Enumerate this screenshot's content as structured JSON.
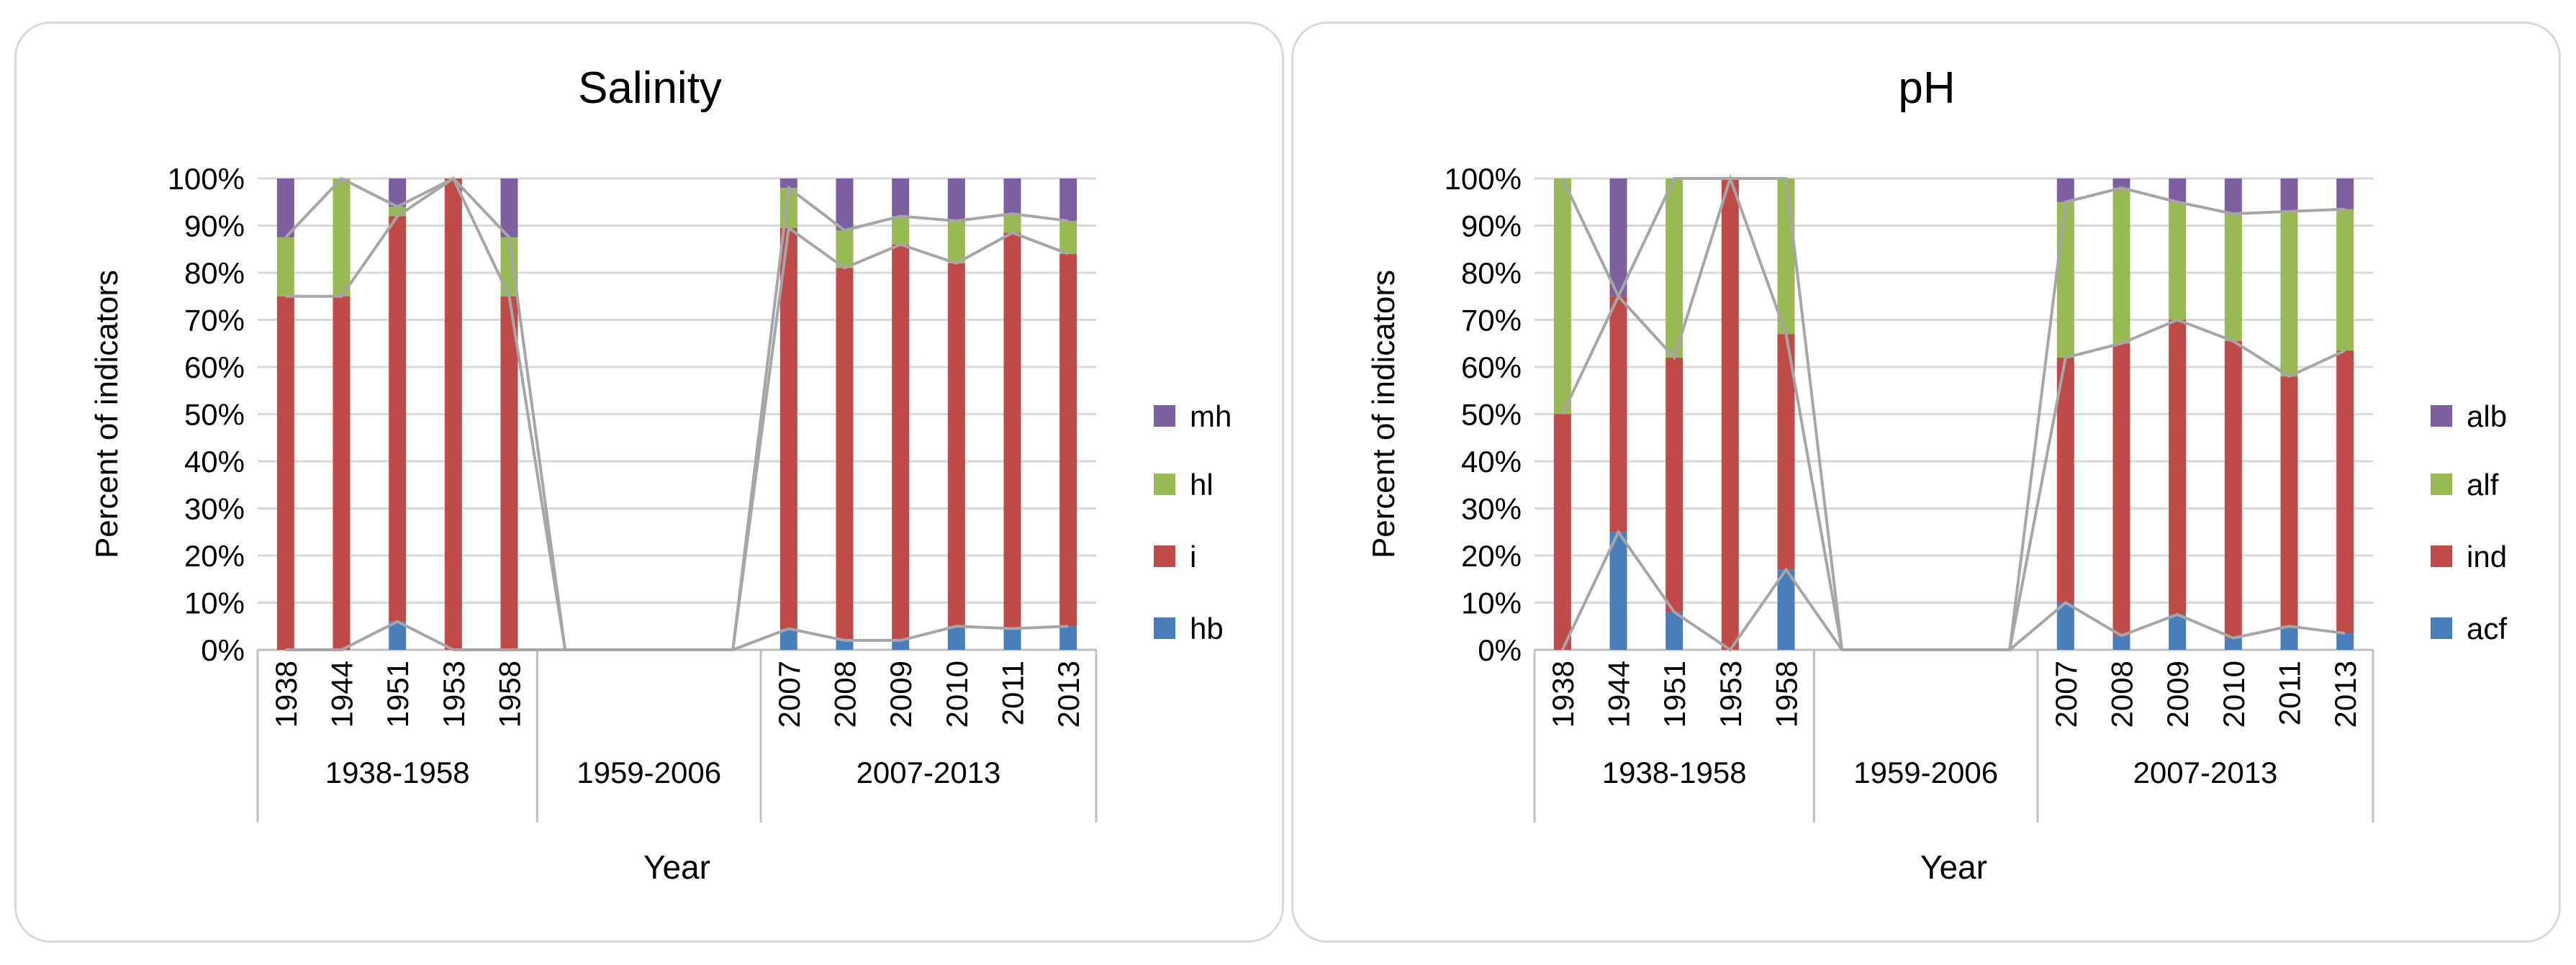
{
  "chart_data": [
    {
      "type": "bar",
      "stacked": true,
      "percent_stacked": true,
      "title": "Salinity",
      "xlabel": "Year",
      "ylabel": "Percent of indicators",
      "ylim": [
        0,
        100
      ],
      "ytick_labels": [
        "0%",
        "10%",
        "20%",
        "30%",
        "40%",
        "50%",
        "60%",
        "70%",
        "80%",
        "90%",
        "100%"
      ],
      "groups": [
        "1938-1958",
        "1959-2006",
        "2007-2013"
      ],
      "categories": [
        "1938",
        "1944",
        "1951",
        "1953",
        "1958",
        "",
        "",
        "",
        "",
        "2007",
        "2008",
        "2009",
        "2010",
        "2011",
        "2013"
      ],
      "category_group": [
        0,
        0,
        0,
        0,
        0,
        1,
        1,
        1,
        1,
        2,
        2,
        2,
        2,
        2,
        2
      ],
      "series": [
        {
          "name": "hb",
          "color": "#4a7ebb",
          "values": [
            0,
            0,
            6,
            0,
            0,
            0,
            0,
            0,
            0,
            4.5,
            2,
            2,
            5,
            4.5,
            5
          ]
        },
        {
          "name": "i",
          "color": "#be4b48",
          "values": [
            75,
            75,
            86,
            100,
            75,
            0,
            0,
            0,
            0,
            85,
            79,
            84,
            77,
            84,
            79
          ]
        },
        {
          "name": "hl",
          "color": "#98b954",
          "values": [
            12.5,
            25,
            2,
            0,
            12.5,
            0,
            0,
            0,
            0,
            8.5,
            8,
            6,
            9,
            4,
            7
          ]
        },
        {
          "name": "mh",
          "color": "#7d60a0",
          "values": [
            12.5,
            0,
            6,
            0,
            12.5,
            0,
            0,
            0,
            0,
            2,
            11,
            8,
            9,
            7.5,
            9
          ]
        }
      ],
      "legend": [
        "mh",
        "hl",
        "i",
        "hb"
      ],
      "legend_position": "right"
    },
    {
      "type": "bar",
      "stacked": true,
      "percent_stacked": true,
      "title": "pH",
      "xlabel": "Year",
      "ylabel": "Percent of indicators",
      "ylim": [
        0,
        100
      ],
      "ytick_labels": [
        "0%",
        "10%",
        "20%",
        "30%",
        "40%",
        "50%",
        "60%",
        "70%",
        "80%",
        "90%",
        "100%"
      ],
      "groups": [
        "1938-1958",
        "1959-2006",
        "2007-2013"
      ],
      "categories": [
        "1938",
        "1944",
        "1951",
        "1953",
        "1958",
        "",
        "",
        "",
        "",
        "2007",
        "2008",
        "2009",
        "2010",
        "2011",
        "2013"
      ],
      "category_group": [
        0,
        0,
        0,
        0,
        0,
        1,
        1,
        1,
        1,
        2,
        2,
        2,
        2,
        2,
        2
      ],
      "series": [
        {
          "name": "acf",
          "color": "#4a7ebb",
          "values": [
            0,
            25,
            8,
            0,
            17,
            0,
            0,
            0,
            0,
            10,
            3,
            7.5,
            2.5,
            5,
            3.5
          ]
        },
        {
          "name": "ind",
          "color": "#be4b48",
          "values": [
            50,
            50,
            54,
            100,
            50,
            0,
            0,
            0,
            0,
            52,
            62,
            62.5,
            63,
            53,
            60
          ]
        },
        {
          "name": "alf",
          "color": "#98b954",
          "values": [
            50,
            0,
            38,
            0,
            33,
            0,
            0,
            0,
            0,
            33,
            33,
            25,
            27,
            35,
            30
          ]
        },
        {
          "name": "alb",
          "color": "#7d60a0",
          "values": [
            0,
            25,
            0,
            0,
            0,
            0,
            0,
            0,
            0,
            5,
            2,
            5,
            7.5,
            7,
            6.5
          ]
        }
      ],
      "legend": [
        "alb",
        "alf",
        "ind",
        "acf"
      ],
      "legend_position": "right"
    }
  ]
}
